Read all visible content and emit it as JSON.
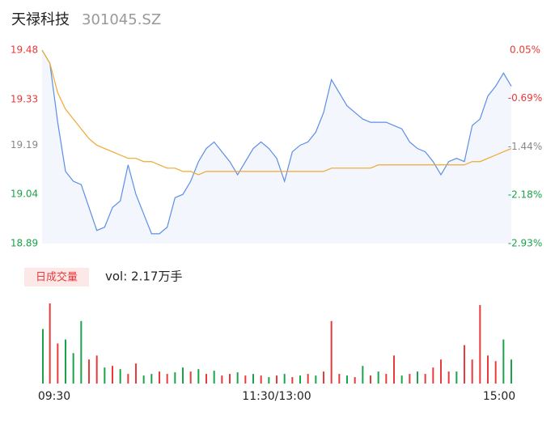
{
  "chart_data": {
    "type": "intraday",
    "title": "天禄科技",
    "subtitle": "301045.SZ",
    "x": [
      0,
      4,
      8,
      12,
      16,
      20,
      24,
      28,
      32,
      36,
      40,
      44,
      48,
      52,
      56,
      60,
      64,
      68,
      72,
      76,
      80,
      84,
      88,
      92,
      96,
      100,
      104,
      108,
      112,
      116,
      120,
      124,
      128,
      132,
      136,
      140,
      144,
      148,
      152,
      156,
      160,
      164,
      168,
      172,
      176,
      180,
      184,
      188,
      192,
      196,
      200,
      204,
      208,
      212,
      216,
      220,
      224,
      228,
      232,
      236,
      240
    ],
    "xlim": [
      0,
      240
    ],
    "xticks": [
      {
        "value": 0,
        "label": "09:30"
      },
      {
        "value": 120,
        "label": "11:30/13:00"
      },
      {
        "value": 240,
        "label": "15:00"
      }
    ],
    "ylim": [
      18.89,
      19.48
    ],
    "yticks": [
      19.48,
      19.33,
      19.19,
      19.04,
      18.89
    ],
    "ytick_colors": [
      "#e83a3a",
      "#e83a3a",
      "#888888",
      "#1aa34a",
      "#1aa34a"
    ],
    "y2lim": [
      -2.93,
      0.05
    ],
    "y2ticks": [
      {
        "value": 0.05,
        "label": "0.05%"
      },
      {
        "value": -0.69,
        "label": "-0.69%"
      },
      {
        "value": -1.44,
        "label": "-1.44%"
      },
      {
        "value": -2.18,
        "label": "-2.18%"
      },
      {
        "value": -2.93,
        "label": "-2.93%"
      }
    ],
    "y2tick_colors": [
      "#e83a3a",
      "#e83a3a",
      "#888888",
      "#1aa34a",
      "#1aa34a"
    ],
    "series": [
      {
        "name": "price",
        "color": "#5b8ee6",
        "values": [
          19.48,
          19.44,
          19.26,
          19.11,
          19.08,
          19.07,
          19.0,
          18.93,
          18.94,
          19.0,
          19.02,
          19.13,
          19.04,
          18.98,
          18.92,
          18.92,
          18.94,
          19.03,
          19.04,
          19.08,
          19.14,
          19.18,
          19.2,
          19.17,
          19.14,
          19.1,
          19.14,
          19.18,
          19.2,
          19.18,
          19.15,
          19.08,
          19.17,
          19.19,
          19.2,
          19.23,
          19.29,
          19.39,
          19.35,
          19.31,
          19.29,
          19.27,
          19.26,
          19.26,
          19.26,
          19.25,
          19.24,
          19.2,
          19.18,
          19.17,
          19.14,
          19.1,
          19.14,
          19.15,
          19.14,
          19.25,
          19.27,
          19.34,
          19.37,
          19.41,
          19.37
        ]
      },
      {
        "name": "average",
        "color": "#f0a830",
        "values": [
          19.48,
          19.44,
          19.35,
          19.3,
          19.27,
          19.24,
          19.21,
          19.19,
          19.18,
          19.17,
          19.16,
          19.15,
          19.15,
          19.14,
          19.14,
          19.13,
          19.12,
          19.12,
          19.11,
          19.11,
          19.1,
          19.11,
          19.11,
          19.11,
          19.11,
          19.11,
          19.11,
          19.11,
          19.11,
          19.11,
          19.11,
          19.11,
          19.11,
          19.11,
          19.11,
          19.11,
          19.11,
          19.12,
          19.12,
          19.12,
          19.12,
          19.12,
          19.12,
          19.13,
          19.13,
          19.13,
          19.13,
          19.13,
          19.13,
          19.13,
          19.13,
          19.13,
          19.13,
          19.13,
          19.13,
          19.14,
          19.14,
          19.15,
          19.16,
          19.17,
          19.18
        ]
      }
    ],
    "volume": {
      "legend": "日成交量",
      "summary": "vol: 2.17万手",
      "ylim": [
        0,
        100
      ],
      "up_color": "#e83a3a",
      "down_color": "#1aa34a",
      "values": [
        68,
        100,
        50,
        55,
        38,
        78,
        30,
        35,
        20,
        22,
        18,
        12,
        25,
        10,
        12,
        15,
        12,
        14,
        20,
        15,
        18,
        12,
        16,
        10,
        12,
        14,
        10,
        12,
        10,
        8,
        10,
        12,
        8,
        10,
        12,
        10,
        15,
        78,
        12,
        10,
        8,
        22,
        10,
        15,
        12,
        35,
        10,
        12,
        15,
        12,
        20,
        30,
        15,
        15,
        48,
        30,
        98,
        35,
        28,
        55,
        30
      ],
      "rising": [
        false,
        true,
        true,
        false,
        false,
        false,
        true,
        true,
        false,
        true,
        false,
        true,
        true,
        false,
        false,
        true,
        true,
        false,
        false,
        true,
        false,
        true,
        false,
        true,
        true,
        false,
        true,
        false,
        true,
        false,
        true,
        false,
        true,
        false,
        true,
        false,
        true,
        true,
        true,
        false,
        true,
        false,
        true,
        false,
        true,
        true,
        false,
        true,
        false,
        true,
        true,
        true,
        true,
        false,
        true,
        true,
        true,
        true,
        true,
        false,
        false
      ]
    }
  }
}
